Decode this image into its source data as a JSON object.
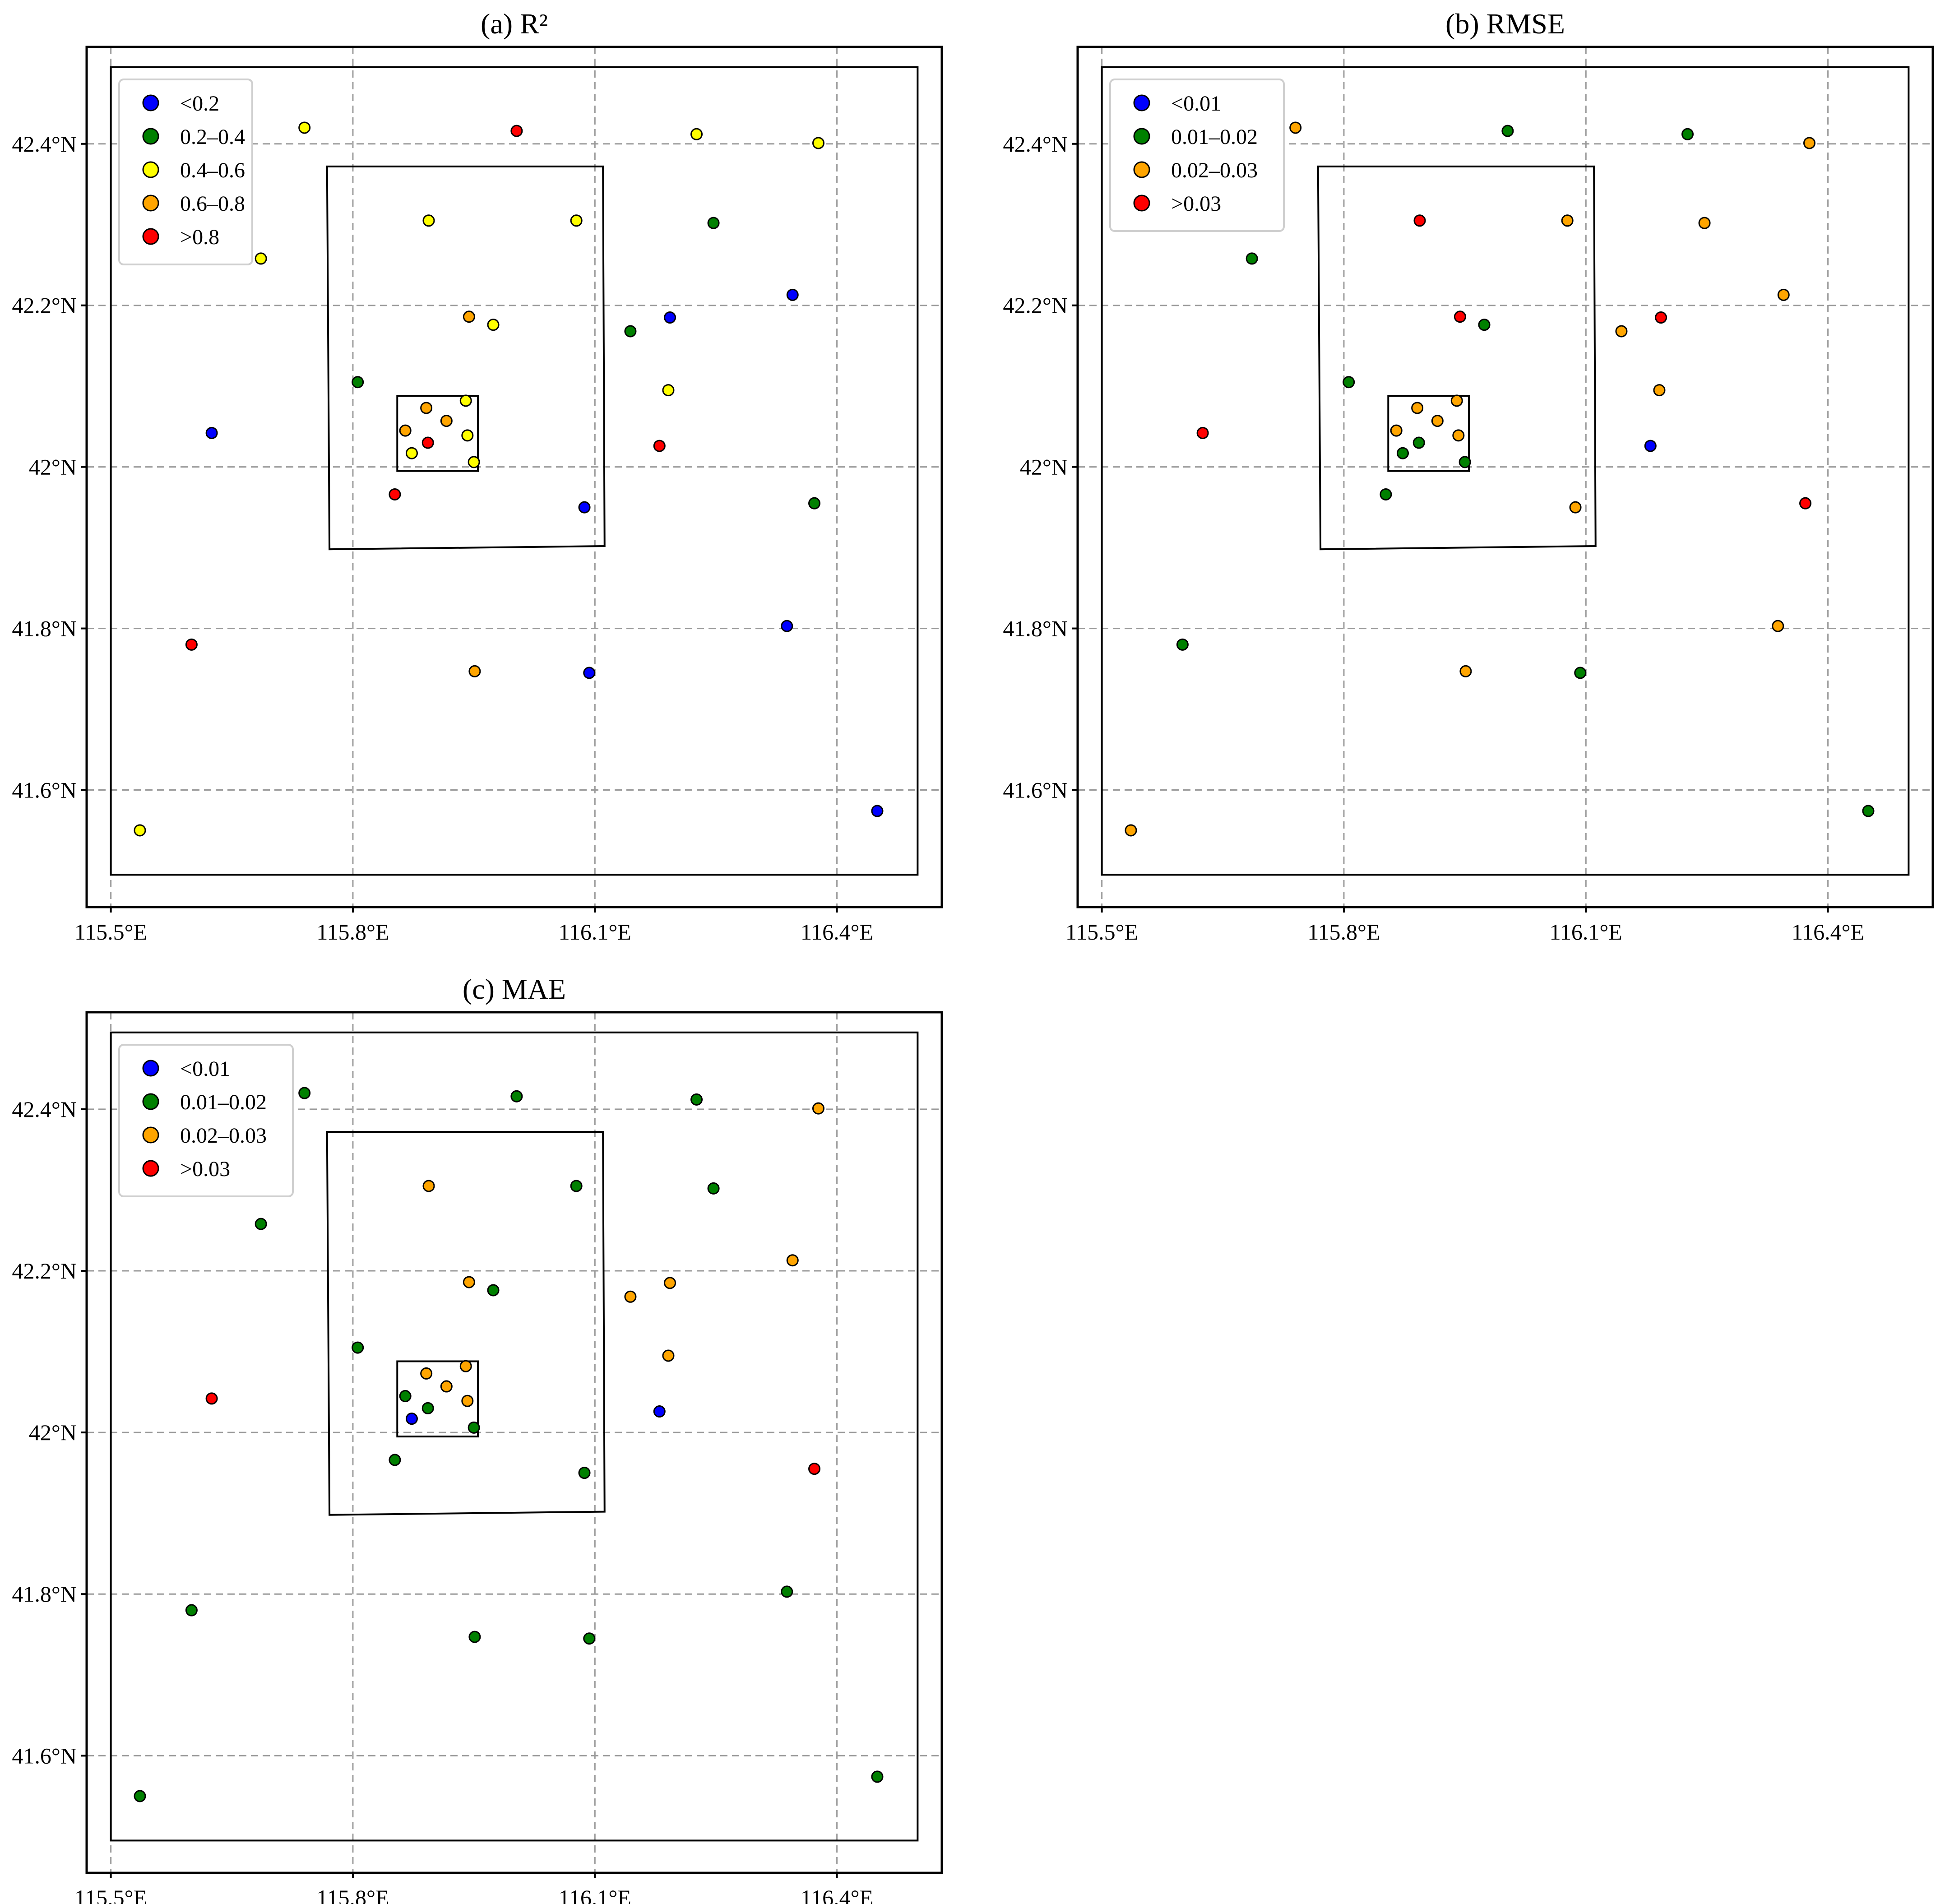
{
  "figure": {
    "panels": [
      {
        "id": "a",
        "title": "(a) R²"
      },
      {
        "id": "b",
        "title": "(b) RMSE"
      },
      {
        "id": "c",
        "title": "(c) MAE"
      }
    ]
  },
  "chart_data": [
    {
      "type": "scatter",
      "title": "(a) R²",
      "xlabel": "",
      "ylabel": "",
      "xlim": [
        115.47,
        116.53
      ],
      "ylim": [
        41.455,
        42.52
      ],
      "xticks": [
        115.5,
        115.8,
        116.1,
        116.4
      ],
      "xtick_labels": [
        "115.5°E",
        "115.8°E",
        "116.1°E",
        "116.4°E"
      ],
      "yticks": [
        41.6,
        41.8,
        42.0,
        42.2,
        42.4
      ],
      "ytick_labels": [
        "41.6°N",
        "41.8°N",
        "42°N",
        "42.2°N",
        "42.4°N"
      ],
      "grid": true,
      "legend_position": "top-left",
      "regions": [
        [
          [
            115.5,
            41.495
          ],
          [
            116.5,
            41.495
          ],
          [
            116.5,
            42.495
          ],
          [
            115.5,
            42.495
          ]
        ],
        [
          [
            115.768,
            42.372
          ],
          [
            116.11,
            42.372
          ],
          [
            116.112,
            41.902
          ],
          [
            115.771,
            41.898
          ]
        ],
        [
          [
            115.855,
            42.088
          ],
          [
            115.955,
            42.088
          ],
          [
            115.955,
            41.995
          ],
          [
            115.855,
            41.995
          ]
        ]
      ],
      "classes": [
        {
          "label": "<0.2",
          "color": "#0000ff"
        },
        {
          "label": "0.2–0.4",
          "color": "#008000"
        },
        {
          "label": "0.4–0.6",
          "color": "#ffff00"
        },
        {
          "label": "0.6–0.8",
          "color": "#ffa500"
        },
        {
          "label": ">0.8",
          "color": "#ff0000"
        }
      ],
      "points": [
        {
          "lon": 115.536,
          "lat": 41.55,
          "class": 2
        },
        {
          "lon": 115.6,
          "lat": 41.78,
          "class": 4
        },
        {
          "lon": 115.625,
          "lat": 42.042,
          "class": 0
        },
        {
          "lon": 115.686,
          "lat": 42.258,
          "class": 2
        },
        {
          "lon": 115.74,
          "lat": 42.42,
          "class": 2
        },
        {
          "lon": 115.806,
          "lat": 42.105,
          "class": 1
        },
        {
          "lon": 115.852,
          "lat": 41.966,
          "class": 4
        },
        {
          "lon": 115.894,
          "lat": 42.305,
          "class": 2
        },
        {
          "lon": 115.944,
          "lat": 42.186,
          "class": 3
        },
        {
          "lon": 115.974,
          "lat": 42.176,
          "class": 2
        },
        {
          "lon": 116.003,
          "lat": 42.416,
          "class": 4
        },
        {
          "lon": 115.951,
          "lat": 41.747,
          "class": 3
        },
        {
          "lon": 116.077,
          "lat": 42.305,
          "class": 2
        },
        {
          "lon": 116.087,
          "lat": 41.95,
          "class": 0
        },
        {
          "lon": 116.093,
          "lat": 41.745,
          "class": 0
        },
        {
          "lon": 116.144,
          "lat": 42.168,
          "class": 1
        },
        {
          "lon": 116.18,
          "lat": 42.026,
          "class": 4
        },
        {
          "lon": 116.193,
          "lat": 42.185,
          "class": 0
        },
        {
          "lon": 116.191,
          "lat": 42.095,
          "class": 2
        },
        {
          "lon": 116.226,
          "lat": 42.412,
          "class": 2
        },
        {
          "lon": 116.247,
          "lat": 42.302,
          "class": 1
        },
        {
          "lon": 116.345,
          "lat": 42.213,
          "class": 0
        },
        {
          "lon": 116.338,
          "lat": 41.803,
          "class": 0
        },
        {
          "lon": 116.372,
          "lat": 41.955,
          "class": 1
        },
        {
          "lon": 116.377,
          "lat": 42.401,
          "class": 2
        },
        {
          "lon": 116.45,
          "lat": 41.574,
          "class": 0
        },
        {
          "lon": 115.865,
          "lat": 42.045,
          "class": 3
        },
        {
          "lon": 115.891,
          "lat": 42.073,
          "class": 3
        },
        {
          "lon": 115.916,
          "lat": 42.057,
          "class": 3
        },
        {
          "lon": 115.94,
          "lat": 42.082,
          "class": 2
        },
        {
          "lon": 115.893,
          "lat": 42.03,
          "class": 4
        },
        {
          "lon": 115.942,
          "lat": 42.039,
          "class": 2
        },
        {
          "lon": 115.873,
          "lat": 42.017,
          "class": 2
        },
        {
          "lon": 115.95,
          "lat": 42.006,
          "class": 2
        }
      ]
    },
    {
      "type": "scatter",
      "title": "(b) RMSE",
      "xlabel": "",
      "ylabel": "",
      "xlim": [
        115.47,
        116.53
      ],
      "ylim": [
        41.455,
        42.52
      ],
      "xticks": [
        115.5,
        115.8,
        116.1,
        116.4
      ],
      "xtick_labels": [
        "115.5°E",
        "115.8°E",
        "116.1°E",
        "116.4°E"
      ],
      "yticks": [
        41.6,
        41.8,
        42.0,
        42.2,
        42.4
      ],
      "ytick_labels": [
        "41.6°N",
        "41.8°N",
        "42°N",
        "42.2°N",
        "42.4°N"
      ],
      "grid": true,
      "legend_position": "top-left",
      "regions": [
        [
          [
            115.5,
            41.495
          ],
          [
            116.5,
            41.495
          ],
          [
            116.5,
            42.495
          ],
          [
            115.5,
            42.495
          ]
        ],
        [
          [
            115.768,
            42.372
          ],
          [
            116.11,
            42.372
          ],
          [
            116.112,
            41.902
          ],
          [
            115.771,
            41.898
          ]
        ],
        [
          [
            115.855,
            42.088
          ],
          [
            115.955,
            42.088
          ],
          [
            115.955,
            41.995
          ],
          [
            115.855,
            41.995
          ]
        ]
      ],
      "classes": [
        {
          "label": "<0.01",
          "color": "#0000ff"
        },
        {
          "label": "0.01–0.02",
          "color": "#008000"
        },
        {
          "label": "0.02–0.03",
          "color": "#ffa500"
        },
        {
          "label": ">0.03",
          "color": "#ff0000"
        }
      ],
      "points": [
        {
          "lon": 115.536,
          "lat": 41.55,
          "class": 2
        },
        {
          "lon": 115.6,
          "lat": 41.78,
          "class": 1
        },
        {
          "lon": 115.625,
          "lat": 42.042,
          "class": 3
        },
        {
          "lon": 115.686,
          "lat": 42.258,
          "class": 1
        },
        {
          "lon": 115.74,
          "lat": 42.42,
          "class": 2
        },
        {
          "lon": 115.806,
          "lat": 42.105,
          "class": 1
        },
        {
          "lon": 115.852,
          "lat": 41.966,
          "class": 1
        },
        {
          "lon": 115.894,
          "lat": 42.305,
          "class": 3
        },
        {
          "lon": 115.944,
          "lat": 42.186,
          "class": 3
        },
        {
          "lon": 115.974,
          "lat": 42.176,
          "class": 1
        },
        {
          "lon": 116.003,
          "lat": 42.416,
          "class": 1
        },
        {
          "lon": 115.951,
          "lat": 41.747,
          "class": 2
        },
        {
          "lon": 116.077,
          "lat": 42.305,
          "class": 2
        },
        {
          "lon": 116.087,
          "lat": 41.95,
          "class": 2
        },
        {
          "lon": 116.093,
          "lat": 41.745,
          "class": 1
        },
        {
          "lon": 116.144,
          "lat": 42.168,
          "class": 2
        },
        {
          "lon": 116.18,
          "lat": 42.026,
          "class": 0
        },
        {
          "lon": 116.193,
          "lat": 42.185,
          "class": 3
        },
        {
          "lon": 116.191,
          "lat": 42.095,
          "class": 2
        },
        {
          "lon": 116.226,
          "lat": 42.412,
          "class": 1
        },
        {
          "lon": 116.247,
          "lat": 42.302,
          "class": 2
        },
        {
          "lon": 116.345,
          "lat": 42.213,
          "class": 2
        },
        {
          "lon": 116.338,
          "lat": 41.803,
          "class": 2
        },
        {
          "lon": 116.372,
          "lat": 41.955,
          "class": 3
        },
        {
          "lon": 116.377,
          "lat": 42.401,
          "class": 2
        },
        {
          "lon": 116.45,
          "lat": 41.574,
          "class": 1
        },
        {
          "lon": 115.865,
          "lat": 42.045,
          "class": 2
        },
        {
          "lon": 115.891,
          "lat": 42.073,
          "class": 2
        },
        {
          "lon": 115.916,
          "lat": 42.057,
          "class": 2
        },
        {
          "lon": 115.94,
          "lat": 42.082,
          "class": 2
        },
        {
          "lon": 115.893,
          "lat": 42.03,
          "class": 1
        },
        {
          "lon": 115.942,
          "lat": 42.039,
          "class": 2
        },
        {
          "lon": 115.873,
          "lat": 42.017,
          "class": 1
        },
        {
          "lon": 115.95,
          "lat": 42.006,
          "class": 1
        }
      ]
    },
    {
      "type": "scatter",
      "title": "(c) MAE",
      "xlabel": "",
      "ylabel": "",
      "xlim": [
        115.47,
        116.53
      ],
      "ylim": [
        41.455,
        42.52
      ],
      "xticks": [
        115.5,
        115.8,
        116.1,
        116.4
      ],
      "xtick_labels": [
        "115.5°E",
        "115.8°E",
        "116.1°E",
        "116.4°E"
      ],
      "yticks": [
        41.6,
        41.8,
        42.0,
        42.2,
        42.4
      ],
      "ytick_labels": [
        "41.6°N",
        "41.8°N",
        "42°N",
        "42.2°N",
        "42.4°N"
      ],
      "grid": true,
      "legend_position": "top-left",
      "regions": [
        [
          [
            115.5,
            41.495
          ],
          [
            116.5,
            41.495
          ],
          [
            116.5,
            42.495
          ],
          [
            115.5,
            42.495
          ]
        ],
        [
          [
            115.768,
            42.372
          ],
          [
            116.11,
            42.372
          ],
          [
            116.112,
            41.902
          ],
          [
            115.771,
            41.898
          ]
        ],
        [
          [
            115.855,
            42.088
          ],
          [
            115.955,
            42.088
          ],
          [
            115.955,
            41.995
          ],
          [
            115.855,
            41.995
          ]
        ]
      ],
      "classes": [
        {
          "label": "<0.01",
          "color": "#0000ff"
        },
        {
          "label": "0.01–0.02",
          "color": "#008000"
        },
        {
          "label": "0.02–0.03",
          "color": "#ffa500"
        },
        {
          "label": ">0.03",
          "color": "#ff0000"
        }
      ],
      "points": [
        {
          "lon": 115.536,
          "lat": 41.55,
          "class": 1
        },
        {
          "lon": 115.6,
          "lat": 41.78,
          "class": 1
        },
        {
          "lon": 115.625,
          "lat": 42.042,
          "class": 3
        },
        {
          "lon": 115.686,
          "lat": 42.258,
          "class": 1
        },
        {
          "lon": 115.74,
          "lat": 42.42,
          "class": 1
        },
        {
          "lon": 115.806,
          "lat": 42.105,
          "class": 1
        },
        {
          "lon": 115.852,
          "lat": 41.966,
          "class": 1
        },
        {
          "lon": 115.894,
          "lat": 42.305,
          "class": 2
        },
        {
          "lon": 115.944,
          "lat": 42.186,
          "class": 2
        },
        {
          "lon": 115.974,
          "lat": 42.176,
          "class": 1
        },
        {
          "lon": 116.003,
          "lat": 42.416,
          "class": 1
        },
        {
          "lon": 115.951,
          "lat": 41.747,
          "class": 1
        },
        {
          "lon": 116.077,
          "lat": 42.305,
          "class": 1
        },
        {
          "lon": 116.087,
          "lat": 41.95,
          "class": 1
        },
        {
          "lon": 116.093,
          "lat": 41.745,
          "class": 1
        },
        {
          "lon": 116.144,
          "lat": 42.168,
          "class": 2
        },
        {
          "lon": 116.18,
          "lat": 42.026,
          "class": 0
        },
        {
          "lon": 116.193,
          "lat": 42.185,
          "class": 2
        },
        {
          "lon": 116.191,
          "lat": 42.095,
          "class": 2
        },
        {
          "lon": 116.226,
          "lat": 42.412,
          "class": 1
        },
        {
          "lon": 116.247,
          "lat": 42.302,
          "class": 1
        },
        {
          "lon": 116.345,
          "lat": 42.213,
          "class": 2
        },
        {
          "lon": 116.338,
          "lat": 41.803,
          "class": 1
        },
        {
          "lon": 116.372,
          "lat": 41.955,
          "class": 3
        },
        {
          "lon": 116.377,
          "lat": 42.401,
          "class": 2
        },
        {
          "lon": 116.45,
          "lat": 41.574,
          "class": 1
        },
        {
          "lon": 115.865,
          "lat": 42.045,
          "class": 1
        },
        {
          "lon": 115.891,
          "lat": 42.073,
          "class": 2
        },
        {
          "lon": 115.916,
          "lat": 42.057,
          "class": 2
        },
        {
          "lon": 115.94,
          "lat": 42.082,
          "class": 2
        },
        {
          "lon": 115.893,
          "lat": 42.03,
          "class": 1
        },
        {
          "lon": 115.942,
          "lat": 42.039,
          "class": 2
        },
        {
          "lon": 115.873,
          "lat": 42.017,
          "class": 0
        },
        {
          "lon": 115.95,
          "lat": 42.006,
          "class": 1
        }
      ]
    }
  ]
}
